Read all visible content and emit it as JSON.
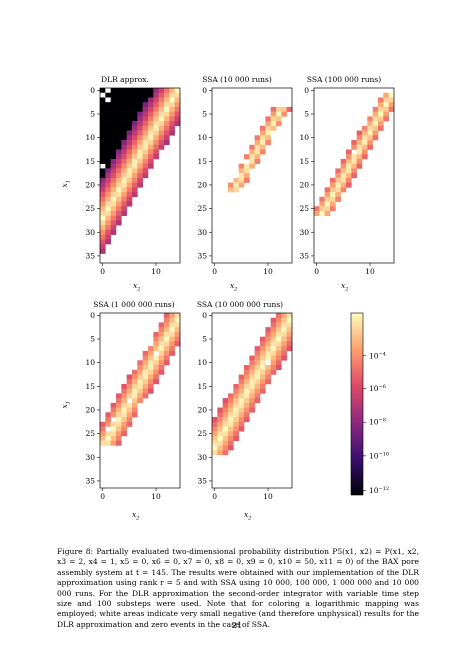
{
  "figure": {
    "panels": [
      {
        "title": "DLR approx.",
        "xlabel": "x",
        "xlabel_sub": "2",
        "ylabel": "x",
        "ylabel_sub": "1",
        "yticks": [
          "0",
          "5",
          "10",
          "15",
          "20",
          "25",
          "30",
          "35"
        ],
        "xticks": [
          "0",
          "10"
        ]
      },
      {
        "title": "SSA (10 000 runs)",
        "xlabel": "x",
        "xlabel_sub": "2",
        "ylabel": "",
        "ylabel_sub": "",
        "yticks": [
          "0",
          "5",
          "10",
          "15",
          "20",
          "25",
          "30",
          "35"
        ],
        "xticks": [
          "0",
          "10"
        ]
      },
      {
        "title": "SSA (100 000 runs)",
        "xlabel": "x",
        "xlabel_sub": "2",
        "ylabel": "",
        "ylabel_sub": "",
        "yticks": [
          "0",
          "5",
          "10",
          "15",
          "20",
          "25",
          "30",
          "35"
        ],
        "xticks": [
          "0",
          "10"
        ]
      },
      {
        "title": "SSA (1 000 000 runs)",
        "xlabel": "x",
        "xlabel_sub": "2",
        "ylabel": "x",
        "ylabel_sub": "1",
        "yticks": [
          "0",
          "5",
          "10",
          "15",
          "20",
          "25",
          "30",
          "35"
        ],
        "xticks": [
          "0",
          "10"
        ]
      },
      {
        "title": "SSA (10 000 000 runs)",
        "xlabel": "x",
        "xlabel_sub": "2",
        "ylabel": "",
        "ylabel_sub": "",
        "yticks": [
          "0",
          "5",
          "10",
          "15",
          "20",
          "25",
          "30",
          "35"
        ],
        "xticks": [
          "0",
          "10"
        ]
      }
    ],
    "colorbar": {
      "labels": [
        "10−4",
        "10−6",
        "10−8",
        "10−10",
        "10−12"
      ],
      "colormap": [
        "#000004",
        "#3b0f70",
        "#8c2981",
        "#de4968",
        "#fe9f6d",
        "#fcfdbf"
      ]
    }
  },
  "caption": {
    "text": "Figure 8: Partially evaluated two-dimensional probability distribution P5(x1, x2) = P(x1, x2, x3 = 2, x4 = 1, x5 = 0, x6 = 0, x7 = 0, x8 = 0, x9 = 0, x10 = 50, x11 = 0) of the BAX pore assembly system at t = 145. The results were obtained with our implementation of the DLR approximation using rank r = 5 and with SSA using 10 000, 100 000, 1 000 000 and 10 000 000 runs. For the DLR approximation the second-order integrator with variable time step size and 100 substeps were used. Note that for coloring a logarithmic mapping was employed; white areas indicate very small negative (and therefore unphysical) results for the DLR approximation and zero events in the case of SSA."
  },
  "page_number": "21"
}
